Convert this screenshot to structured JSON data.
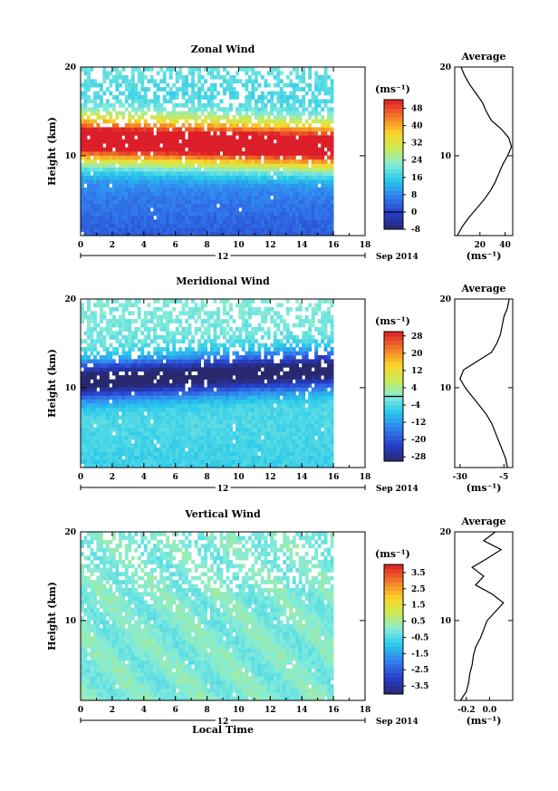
{
  "chart_data": [
    {
      "type": "heatmap",
      "title": "Zonal Wind",
      "ylabel": "Height (km)",
      "xlabel": "",
      "date_label": "12",
      "month_label": "Sep 2014",
      "xlim": [
        0,
        18
      ],
      "ylim": [
        1,
        20
      ],
      "x_ticks": [
        "0",
        "2",
        "4",
        "6",
        "8",
        "10",
        "12",
        "14",
        "16",
        "18"
      ],
      "y_ticks": [
        "10",
        "20"
      ],
      "data_xmax": 16,
      "colorbar": {
        "unit": "(ms⁻¹)",
        "min": -8,
        "max": 52,
        "ticks": [
          "-8",
          "0",
          "8",
          "16",
          "24",
          "32",
          "40",
          "48"
        ],
        "zero_line": 0
      },
      "profile": {
        "title": "Average",
        "xlabel": "(ms⁻¹)",
        "x_ticks": [
          "20",
          "40"
        ],
        "xlim": [
          0,
          46
        ],
        "y_ticks": [
          "10",
          "20"
        ],
        "heights": [
          1,
          2,
          3,
          4,
          5,
          6,
          7,
          8,
          9,
          10,
          11,
          12,
          13,
          14,
          15,
          16,
          17,
          18,
          19,
          20
        ],
        "values": [
          2,
          6,
          11,
          17,
          23,
          28,
          32,
          35,
          38,
          42,
          45,
          43,
          37,
          29,
          25,
          22,
          17,
          12,
          8,
          5
        ]
      }
    },
    {
      "type": "heatmap",
      "title": "Meridional Wind",
      "ylabel": "Height (km)",
      "xlabel": "",
      "date_label": "12",
      "month_label": "Sep 2014",
      "xlim": [
        0,
        18
      ],
      "ylim": [
        1,
        20
      ],
      "x_ticks": [
        "0",
        "2",
        "4",
        "6",
        "8",
        "10",
        "12",
        "14",
        "16",
        "18"
      ],
      "y_ticks": [
        "10",
        "20"
      ],
      "data_xmax": 16,
      "colorbar": {
        "unit": "(ms⁻¹)",
        "min": -30,
        "max": 30,
        "ticks": [
          "-28",
          "-20",
          "-12",
          "-4",
          "4",
          "12",
          "20",
          "28"
        ],
        "zero_line": 0
      },
      "profile": {
        "title": "Average",
        "xlabel": "(ms⁻¹)",
        "x_ticks": [
          "-30",
          "-5"
        ],
        "xlim": [
          -33,
          0
        ],
        "y_ticks": [
          "10",
          "20"
        ],
        "heights": [
          1,
          2,
          3,
          4,
          5,
          6,
          7,
          8,
          9,
          10,
          11,
          12,
          13,
          14,
          15,
          16,
          17,
          18,
          19,
          20
        ],
        "values": [
          -3,
          -4,
          -6,
          -8,
          -10,
          -12,
          -15,
          -19,
          -23,
          -27,
          -30,
          -28,
          -20,
          -12,
          -9,
          -7,
          -6,
          -5,
          -3,
          -2
        ]
      }
    },
    {
      "type": "heatmap",
      "title": "Vertical Wind",
      "ylabel": "Height (km)",
      "xlabel": "Local Time",
      "date_label": "12",
      "month_label": "Sep 2014",
      "xlim": [
        0,
        18
      ],
      "ylim": [
        1,
        20
      ],
      "x_ticks": [
        "0",
        "2",
        "4",
        "6",
        "8",
        "10",
        "12",
        "14",
        "16",
        "18"
      ],
      "y_ticks": [
        "10",
        "20"
      ],
      "data_xmax": 16,
      "colorbar": {
        "unit": "(ms⁻¹)",
        "min": -4,
        "max": 4,
        "ticks": [
          "-3.5",
          "-2.5",
          "-1.5",
          "-0.5",
          "0.5",
          "1.5",
          "2.5",
          "3.5"
        ]
      },
      "profile": {
        "title": "Average",
        "xlabel": "(ms⁻¹)",
        "x_ticks": [
          "-0.2",
          "0.0"
        ],
        "xlim": [
          -0.3,
          0.2
        ],
        "y_ticks": [
          "10",
          "20"
        ],
        "heights": [
          1,
          2,
          3,
          4,
          5,
          6,
          7,
          8,
          9,
          10,
          11,
          12,
          13,
          14,
          15,
          16,
          17,
          18,
          19,
          20
        ],
        "values": [
          -0.25,
          -0.2,
          -0.18,
          -0.17,
          -0.15,
          -0.14,
          -0.12,
          -0.08,
          -0.05,
          -0.02,
          0.05,
          0.12,
          0.02,
          -0.12,
          -0.05,
          -0.15,
          -0.02,
          0.1,
          -0.05,
          0.05
        ]
      }
    }
  ]
}
